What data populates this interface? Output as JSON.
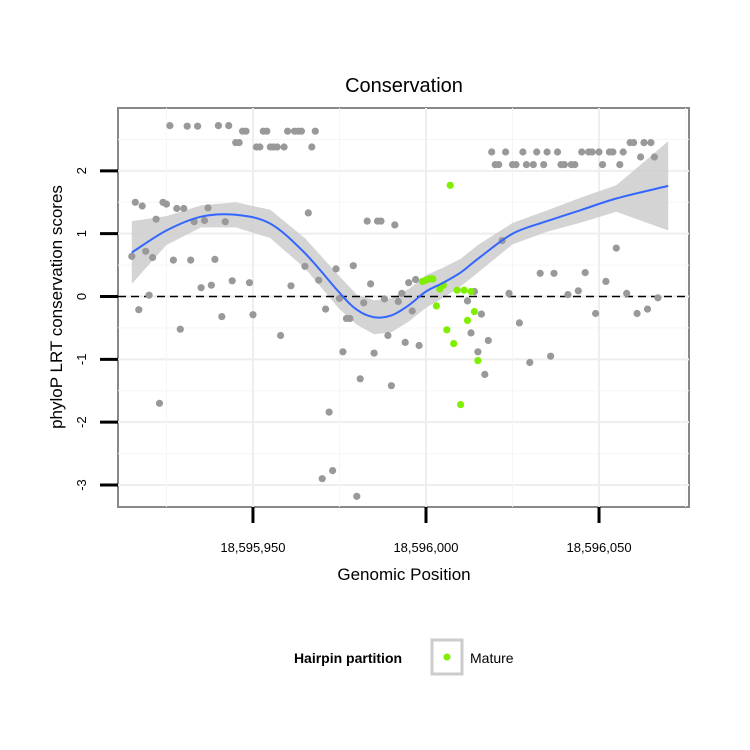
{
  "chart_data": {
    "type": "scatter",
    "title": "Conservation",
    "xlabel": "Genomic Position",
    "ylabel": "phyloP LRT conservation scores",
    "xlim": [
      18595911,
      18596076
    ],
    "ylim": [
      -3.35,
      3.0
    ],
    "xticks": [
      {
        "value": 18595950,
        "label": "18,595,950"
      },
      {
        "value": 18596000,
        "label": "18,596,000"
      },
      {
        "value": 18596050,
        "label": "18,596,050"
      }
    ],
    "yticks": [
      {
        "value": -3,
        "label": "-3"
      },
      {
        "value": -2,
        "label": "-2"
      },
      {
        "value": -1,
        "label": "-1"
      },
      {
        "value": 0,
        "label": "0"
      },
      {
        "value": 1,
        "label": "1"
      },
      {
        "value": 2,
        "label": "2"
      }
    ],
    "reference_line": {
      "y": 0,
      "style": "dashed"
    },
    "grid": true,
    "point_colors": {
      "default": "#999999",
      "mature": "#80ee00"
    },
    "smooth_color": "#3366ff",
    "band_color": "#cccccc",
    "gray_points": [
      [
        18595915,
        0.64
      ],
      [
        18595916,
        1.5
      ],
      [
        18595917,
        -0.21
      ],
      [
        18595918,
        1.44
      ],
      [
        18595919,
        0.72
      ],
      [
        18595920,
        0.02
      ],
      [
        18595921,
        0.62
      ],
      [
        18595922,
        1.23
      ],
      [
        18595923,
        -1.7
      ],
      [
        18595924,
        1.5
      ],
      [
        18595925,
        1.47
      ],
      [
        18595926,
        2.72
      ],
      [
        18595927,
        0.58
      ],
      [
        18595928,
        1.4
      ],
      [
        18595929,
        -0.52
      ],
      [
        18595930,
        1.4
      ],
      [
        18595931,
        2.71
      ],
      [
        18595932,
        0.58
      ],
      [
        18595933,
        1.19
      ],
      [
        18595934,
        2.71
      ],
      [
        18595935,
        0.14
      ],
      [
        18595936,
        1.21
      ],
      [
        18595937,
        1.41
      ],
      [
        18595938,
        0.18
      ],
      [
        18595939,
        0.59
      ],
      [
        18595940,
        2.72
      ],
      [
        18595941,
        -0.32
      ],
      [
        18595942,
        1.19
      ],
      [
        18595943,
        2.72
      ],
      [
        18595944,
        0.25
      ],
      [
        18595945,
        2.45
      ],
      [
        18595946,
        2.45
      ],
      [
        18595947,
        2.63
      ],
      [
        18595948,
        2.63
      ],
      [
        18595949,
        0.22
      ],
      [
        18595950,
        -0.29
      ],
      [
        18595951,
        2.38
      ],
      [
        18595952,
        2.38
      ],
      [
        18595953,
        2.63
      ],
      [
        18595954,
        2.63
      ],
      [
        18595955,
        2.38
      ],
      [
        18595956,
        2.38
      ],
      [
        18595957,
        2.38
      ],
      [
        18595958,
        -0.62
      ],
      [
        18595959,
        2.38
      ],
      [
        18595960,
        2.63
      ],
      [
        18595961,
        0.17
      ],
      [
        18595962,
        2.63
      ],
      [
        18595963,
        2.63
      ],
      [
        18595964,
        2.63
      ],
      [
        18595965,
        0.48
      ],
      [
        18595966,
        1.33
      ],
      [
        18595967,
        2.38
      ],
      [
        18595968,
        2.63
      ],
      [
        18595969,
        0.26
      ],
      [
        18595970,
        -2.9
      ],
      [
        18595971,
        -0.2
      ],
      [
        18595972,
        -1.84
      ],
      [
        18595973,
        -2.77
      ],
      [
        18595974,
        0.44
      ],
      [
        18595975,
        -0.03
      ],
      [
        18595976,
        -0.88
      ],
      [
        18595977,
        -0.35
      ],
      [
        18595978,
        -0.35
      ],
      [
        18595979,
        0.49
      ],
      [
        18595980,
        -3.18
      ],
      [
        18595981,
        -1.31
      ],
      [
        18595982,
        -0.1
      ],
      [
        18595983,
        1.2
      ],
      [
        18595984,
        0.2
      ],
      [
        18595985,
        -0.9
      ],
      [
        18595986,
        1.2
      ],
      [
        18595987,
        1.2
      ],
      [
        18595988,
        -0.04
      ],
      [
        18595989,
        -0.62
      ],
      [
        18595990,
        -1.42
      ],
      [
        18595991,
        1.14
      ],
      [
        18595992,
        -0.08
      ],
      [
        18595993,
        0.05
      ],
      [
        18595994,
        -0.73
      ],
      [
        18595995,
        0.22
      ],
      [
        18595996,
        -0.23
      ],
      [
        18595997,
        0.27
      ],
      [
        18595998,
        -0.78
      ],
      [
        18596012,
        -0.07
      ],
      [
        18596013,
        -0.58
      ],
      [
        18596014,
        0.08
      ],
      [
        18596015,
        -0.88
      ],
      [
        18596016,
        -0.28
      ],
      [
        18596017,
        -1.24
      ],
      [
        18596018,
        -0.7
      ],
      [
        18596019,
        2.3
      ],
      [
        18596020,
        2.1
      ],
      [
        18596021,
        2.1
      ],
      [
        18596022,
        0.89
      ],
      [
        18596023,
        2.3
      ],
      [
        18596024,
        0.05
      ],
      [
        18596025,
        2.1
      ],
      [
        18596026,
        2.1
      ],
      [
        18596027,
        -0.42
      ],
      [
        18596028,
        2.3
      ],
      [
        18596029,
        2.1
      ],
      [
        18596030,
        -1.05
      ],
      [
        18596031,
        2.1
      ],
      [
        18596032,
        2.3
      ],
      [
        18596033,
        0.37
      ],
      [
        18596034,
        2.1
      ],
      [
        18596035,
        2.3
      ],
      [
        18596036,
        -0.95
      ],
      [
        18596037,
        0.37
      ],
      [
        18596038,
        2.3
      ],
      [
        18596039,
        2.1
      ],
      [
        18596040,
        2.1
      ],
      [
        18596041,
        0.03
      ],
      [
        18596042,
        2.1
      ],
      [
        18596043,
        2.1
      ],
      [
        18596044,
        0.09
      ],
      [
        18596045,
        2.3
      ],
      [
        18596046,
        0.38
      ],
      [
        18596047,
        2.3
      ],
      [
        18596048,
        2.3
      ],
      [
        18596049,
        -0.27
      ],
      [
        18596050,
        2.3
      ],
      [
        18596051,
        2.1
      ],
      [
        18596052,
        0.24
      ],
      [
        18596053,
        2.3
      ],
      [
        18596054,
        2.3
      ],
      [
        18596055,
        0.77
      ],
      [
        18596056,
        2.1
      ],
      [
        18596057,
        2.3
      ],
      [
        18596058,
        0.05
      ],
      [
        18596059,
        2.45
      ],
      [
        18596060,
        2.45
      ],
      [
        18596061,
        -0.27
      ],
      [
        18596062,
        2.22
      ],
      [
        18596063,
        2.45
      ],
      [
        18596064,
        -0.2
      ],
      [
        18596065,
        2.45
      ],
      [
        18596066,
        2.22
      ],
      [
        18596067,
        -0.02
      ]
    ],
    "mature_points": [
      [
        18595999,
        0.24
      ],
      [
        18596000,
        0.26
      ],
      [
        18596001,
        0.28
      ],
      [
        18596002,
        0.28
      ],
      [
        18596003,
        -0.15
      ],
      [
        18596004,
        0.12
      ],
      [
        18596005,
        0.18
      ],
      [
        18596006,
        -0.53
      ],
      [
        18596007,
        1.77
      ],
      [
        18596008,
        -0.75
      ],
      [
        18596009,
        0.1
      ],
      [
        18596010,
        -1.72
      ],
      [
        18596011,
        0.1
      ],
      [
        18596012,
        -0.38
      ],
      [
        18596013,
        0.08
      ],
      [
        18596014,
        -0.24
      ],
      [
        18596015,
        -1.02
      ]
    ],
    "smooth_fit": [
      [
        18595915,
        0.7
      ],
      [
        18595925,
        1.05
      ],
      [
        18595935,
        1.27
      ],
      [
        18595945,
        1.3
      ],
      [
        18595955,
        1.16
      ],
      [
        18595965,
        0.69
      ],
      [
        18595975,
        0.06
      ],
      [
        18595980,
        -0.21
      ],
      [
        18595985,
        -0.33
      ],
      [
        18595990,
        -0.3
      ],
      [
        18595995,
        -0.14
      ],
      [
        18596000,
        0.08
      ],
      [
        18596005,
        0.22
      ],
      [
        18596010,
        0.38
      ],
      [
        18596015,
        0.6
      ],
      [
        18596025,
        1.0
      ],
      [
        18596035,
        1.2
      ],
      [
        18596045,
        1.38
      ],
      [
        18596055,
        1.56
      ],
      [
        18596070,
        1.76
      ]
    ],
    "band_lower": [
      0.2,
      0.82,
      1.1,
      1.1,
      0.93,
      0.45,
      -0.2,
      -0.45,
      -0.6,
      -0.57,
      -0.4,
      -0.18,
      -0.02,
      0.16,
      0.38,
      0.83,
      1.03,
      1.18,
      1.35,
      1.05
    ],
    "band_upper": [
      1.2,
      1.28,
      1.45,
      1.5,
      1.38,
      0.93,
      0.32,
      0.03,
      -0.06,
      -0.03,
      0.12,
      0.34,
      0.46,
      0.6,
      0.82,
      1.17,
      1.37,
      1.58,
      1.77,
      2.47
    ]
  },
  "legend": {
    "title": "Hairpin partition",
    "label": "Mature"
  }
}
